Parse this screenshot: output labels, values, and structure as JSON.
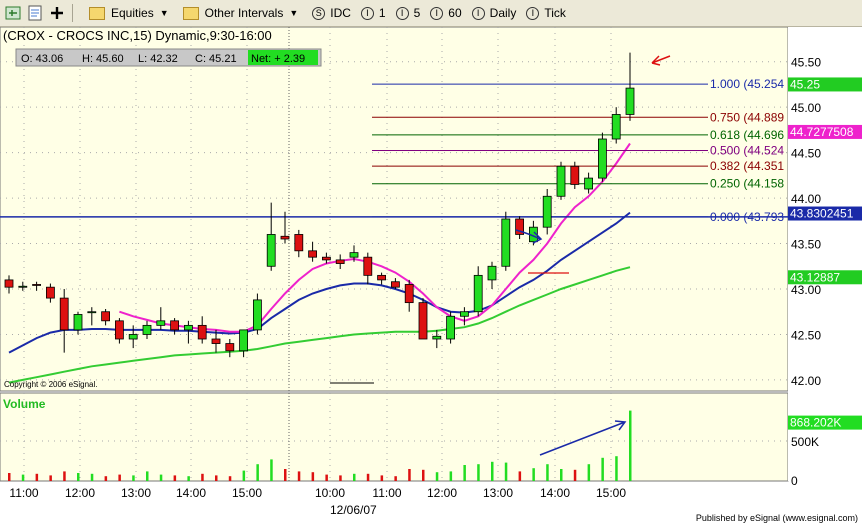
{
  "toolbar": {
    "equities_label": "Equities",
    "intervals_label": "Other Intervals",
    "symbol_buttons": [
      {
        "letter": "S",
        "label": "IDC"
      },
      {
        "letter": "I",
        "label": "1"
      },
      {
        "letter": "I",
        "label": "5"
      },
      {
        "letter": "I",
        "label": "60"
      },
      {
        "letter": "I",
        "label": "Daily"
      },
      {
        "letter": "I",
        "label": "Tick"
      }
    ]
  },
  "header": {
    "title": "(CROX - CROCS INC,15) Dynamic,9:30-16:00",
    "ohlc": {
      "open": "O: 43.06",
      "high": "H: 45.60",
      "low": "L: 42.32",
      "close": "C: 45.21",
      "net": "Net: + 2.39"
    }
  },
  "copyright": "Copyright © 2006 eSignal.",
  "volume_label": "Volume",
  "published": "Published by eSignal (www.esignal.com)",
  "colors": {
    "up": "#22dd22",
    "down": "#dd1111",
    "ma_blue": "#1a2aa8",
    "ma_magenta": "#ee22cc",
    "ma_green": "#33cc33",
    "grid": "#aaaaaa"
  },
  "chart_data": {
    "type": "candlestick",
    "y_range": [
      41.9,
      45.75
    ],
    "price_ticks": [
      "45.50",
      "45.00",
      "44.50",
      "44.00",
      "43.50",
      "43.00",
      "42.50",
      "42.00"
    ],
    "x_tick_labels": [
      "11:00",
      "12:00",
      "13:00",
      "14:00",
      "15:00",
      "10:00",
      "11:00",
      "12:00",
      "13:00",
      "14:00",
      "15:00"
    ],
    "date_label": "12/06/07",
    "volume_ticks": [
      "500K",
      "0"
    ],
    "volume_max": 950000,
    "candles": [
      {
        "o": 43.1,
        "h": 43.15,
        "l": 42.95,
        "c": 43.02
      },
      {
        "o": 43.03,
        "h": 43.08,
        "l": 42.98,
        "c": 43.03
      },
      {
        "o": 43.05,
        "h": 43.08,
        "l": 42.98,
        "c": 43.04
      },
      {
        "o": 43.02,
        "h": 43.06,
        "l": 42.85,
        "c": 42.9
      },
      {
        "o": 42.9,
        "h": 43.0,
        "l": 42.3,
        "c": 42.55
      },
      {
        "o": 42.55,
        "h": 42.75,
        "l": 42.5,
        "c": 42.72
      },
      {
        "o": 42.75,
        "h": 42.8,
        "l": 42.6,
        "c": 42.75
      },
      {
        "o": 42.75,
        "h": 42.78,
        "l": 42.6,
        "c": 42.65
      },
      {
        "o": 42.65,
        "h": 42.68,
        "l": 42.4,
        "c": 42.45
      },
      {
        "o": 42.45,
        "h": 42.6,
        "l": 42.35,
        "c": 42.5
      },
      {
        "o": 42.5,
        "h": 42.65,
        "l": 42.45,
        "c": 42.6
      },
      {
        "o": 42.6,
        "h": 42.8,
        "l": 42.55,
        "c": 42.65
      },
      {
        "o": 42.65,
        "h": 42.68,
        "l": 42.5,
        "c": 42.55
      },
      {
        "o": 42.55,
        "h": 42.65,
        "l": 42.4,
        "c": 42.6
      },
      {
        "o": 42.6,
        "h": 42.7,
        "l": 42.4,
        "c": 42.45
      },
      {
        "o": 42.45,
        "h": 42.55,
        "l": 42.3,
        "c": 42.4
      },
      {
        "o": 42.4,
        "h": 42.45,
        "l": 42.25,
        "c": 42.32
      },
      {
        "o": 42.32,
        "h": 42.55,
        "l": 42.25,
        "c": 42.55
      },
      {
        "o": 42.55,
        "h": 42.95,
        "l": 42.5,
        "c": 42.88
      },
      {
        "o": 43.25,
        "h": 43.95,
        "l": 43.2,
        "c": 43.6
      },
      {
        "o": 43.58,
        "h": 43.85,
        "l": 43.5,
        "c": 43.55
      },
      {
        "o": 43.6,
        "h": 43.65,
        "l": 43.35,
        "c": 43.42
      },
      {
        "o": 43.42,
        "h": 43.52,
        "l": 43.3,
        "c": 43.35
      },
      {
        "o": 43.35,
        "h": 43.4,
        "l": 43.28,
        "c": 43.32
      },
      {
        "o": 43.32,
        "h": 43.38,
        "l": 43.22,
        "c": 43.28
      },
      {
        "o": 43.35,
        "h": 43.48,
        "l": 43.3,
        "c": 43.4
      },
      {
        "o": 43.35,
        "h": 43.4,
        "l": 43.05,
        "c": 43.15
      },
      {
        "o": 43.15,
        "h": 43.18,
        "l": 43.05,
        "c": 43.1
      },
      {
        "o": 43.08,
        "h": 43.12,
        "l": 43.0,
        "c": 43.02
      },
      {
        "o": 43.05,
        "h": 43.1,
        "l": 42.75,
        "c": 42.85
      },
      {
        "o": 42.85,
        "h": 42.9,
        "l": 42.45,
        "c": 42.45
      },
      {
        "o": 42.45,
        "h": 42.55,
        "l": 42.35,
        "c": 42.48
      },
      {
        "o": 42.45,
        "h": 42.75,
        "l": 42.4,
        "c": 42.7
      },
      {
        "o": 42.7,
        "h": 42.8,
        "l": 42.6,
        "c": 42.75
      },
      {
        "o": 42.75,
        "h": 43.25,
        "l": 42.7,
        "c": 43.15
      },
      {
        "o": 43.1,
        "h": 43.3,
        "l": 43.0,
        "c": 43.25
      },
      {
        "o": 43.25,
        "h": 43.85,
        "l": 43.2,
        "c": 43.77
      },
      {
        "o": 43.77,
        "h": 43.8,
        "l": 43.55,
        "c": 43.6
      },
      {
        "o": 43.52,
        "h": 43.75,
        "l": 43.48,
        "c": 43.68
      },
      {
        "o": 43.68,
        "h": 44.1,
        "l": 43.6,
        "c": 44.02
      },
      {
        "o": 44.02,
        "h": 44.4,
        "l": 43.98,
        "c": 44.35
      },
      {
        "o": 44.35,
        "h": 44.4,
        "l": 44.1,
        "c": 44.15
      },
      {
        "o": 44.1,
        "h": 44.28,
        "l": 44.05,
        "c": 44.22
      },
      {
        "o": 44.22,
        "h": 44.72,
        "l": 44.18,
        "c": 44.65
      },
      {
        "o": 44.65,
        "h": 45.0,
        "l": 44.6,
        "c": 44.92
      },
      {
        "o": 44.92,
        "h": 45.6,
        "l": 44.85,
        "c": 45.21
      }
    ],
    "volume": [
      100000,
      80000,
      90000,
      70000,
      120000,
      100000,
      90000,
      60000,
      80000,
      70000,
      120000,
      80000,
      70000,
      60000,
      90000,
      70000,
      60000,
      130000,
      210000,
      270000,
      150000,
      120000,
      110000,
      80000,
      70000,
      90000,
      90000,
      70000,
      60000,
      150000,
      140000,
      110000,
      120000,
      200000,
      210000,
      240000,
      230000,
      120000,
      160000,
      210000,
      150000,
      140000,
      210000,
      290000,
      310000,
      880000
    ],
    "ma_magenta": [
      null,
      null,
      null,
      null,
      null,
      null,
      null,
      null,
      42.75,
      42.7,
      42.66,
      42.62,
      42.6,
      42.58,
      42.56,
      42.55,
      42.53,
      42.53,
      42.6,
      42.78,
      42.95,
      43.1,
      43.22,
      43.28,
      43.31,
      43.33,
      43.3,
      43.25,
      43.18,
      43.08,
      42.95,
      42.8,
      42.7,
      42.65,
      42.7,
      42.82,
      43.0,
      43.18,
      43.32,
      43.5,
      43.72,
      43.9,
      44.02,
      44.18,
      44.38,
      44.6
    ],
    "ma_blue": [
      42.3,
      42.38,
      42.46,
      42.52,
      42.55,
      42.55,
      42.56,
      42.56,
      42.55,
      42.55,
      42.55,
      42.55,
      42.54,
      42.54,
      42.53,
      42.52,
      42.51,
      42.52,
      42.56,
      42.68,
      42.78,
      42.88,
      42.95,
      43.0,
      43.04,
      43.06,
      43.06,
      43.04,
      43.0,
      42.95,
      42.88,
      42.8,
      42.75,
      42.74,
      42.76,
      42.82,
      42.92,
      43.02,
      43.1,
      43.2,
      43.32,
      43.42,
      43.52,
      43.62,
      43.72,
      43.84
    ],
    "ma_green": [
      41.97,
      42.0,
      42.03,
      42.06,
      42.09,
      42.12,
      42.15,
      42.17,
      42.19,
      42.21,
      42.23,
      42.25,
      42.27,
      42.28,
      42.29,
      42.3,
      42.31,
      42.32,
      42.34,
      42.37,
      42.4,
      42.42,
      42.44,
      42.46,
      42.48,
      42.5,
      42.51,
      42.52,
      42.53,
      42.53,
      42.53,
      42.54,
      42.56,
      42.58,
      42.62,
      42.68,
      42.75,
      42.82,
      42.88,
      42.94,
      43.0,
      43.05,
      43.1,
      43.15,
      43.2,
      43.24
    ],
    "fib_levels": [
      {
        "label": "1.000 (45.254",
        "value": 45.254,
        "color": "#1a2aa8"
      },
      {
        "label": "0.750 (44.889",
        "value": 44.889,
        "color": "#8b0000"
      },
      {
        "label": "0.618 (44.696",
        "value": 44.696,
        "color": "#006400"
      },
      {
        "label": "0.500 (44.524",
        "value": 44.524,
        "color": "#800080"
      },
      {
        "label": "0.382 (44.351",
        "value": 44.351,
        "color": "#8b0000"
      },
      {
        "label": "0.250 (44.158",
        "value": 44.158,
        "color": "#006400"
      },
      {
        "label": "0.000 (43.793",
        "value": 43.793,
        "color": "#1a2aa8"
      }
    ],
    "price_badges": [
      {
        "text": "45.25",
        "value": 45.25,
        "bg": "#22cc22",
        "fg": "#ffffff"
      },
      {
        "text": "44.7277508",
        "value": 44.7277508,
        "bg": "#ee22cc",
        "fg": "#ffffff"
      },
      {
        "text": "43.8302451",
        "value": 43.8302451,
        "bg": "#1a2aa8",
        "fg": "#ffffff"
      },
      {
        "text": "43.12887",
        "value": 43.12887,
        "bg": "#22cc22",
        "fg": "#ffffff"
      }
    ],
    "volume_badge": "868.202K",
    "horizontal_line": 43.793
  }
}
